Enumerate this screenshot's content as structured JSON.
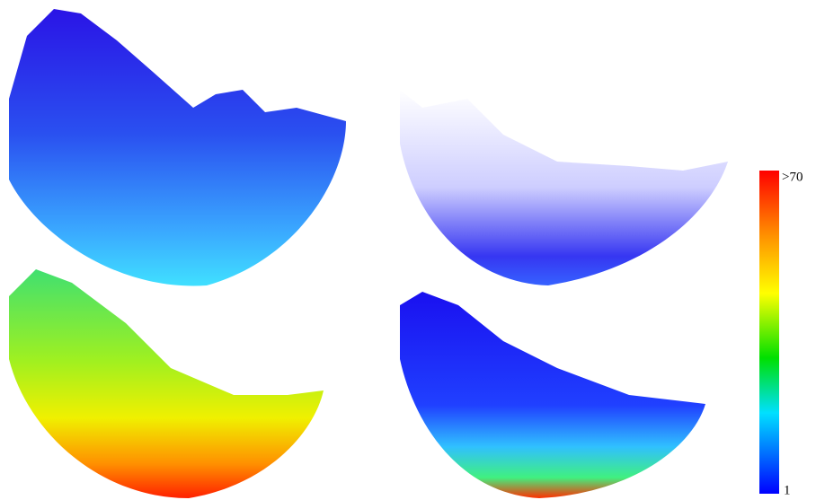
{
  "colorbar": {
    "max_label": ">70",
    "min_label": "1"
  }
}
